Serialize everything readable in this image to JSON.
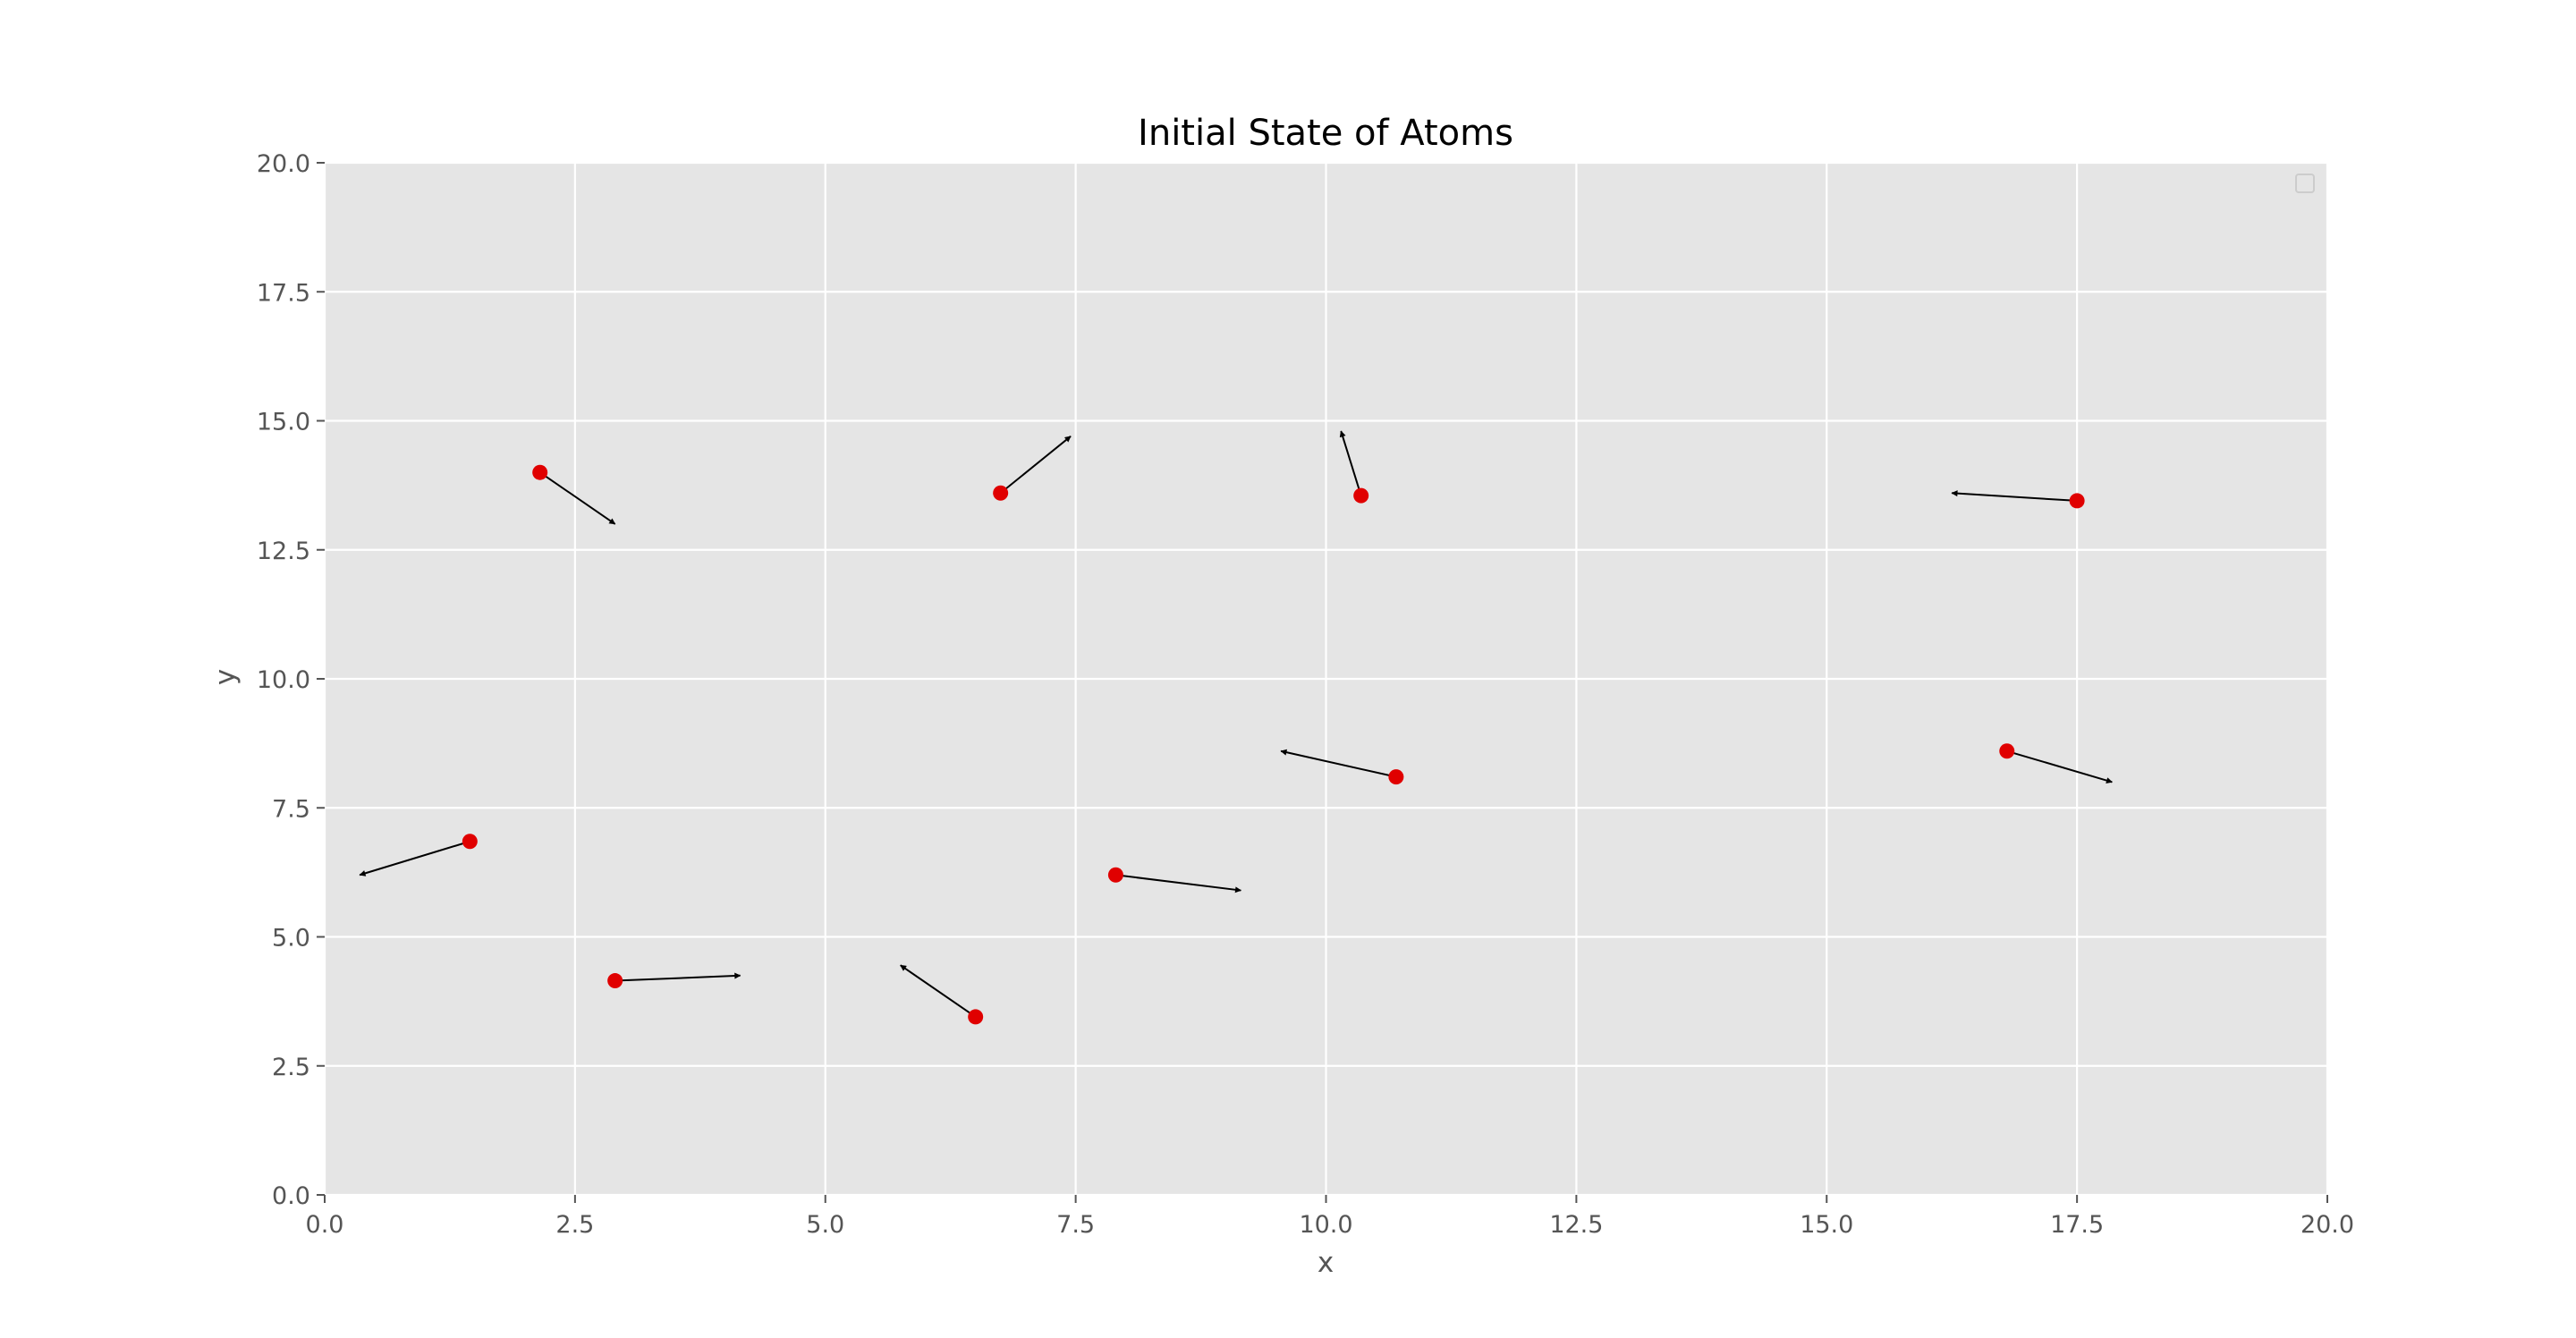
{
  "chart_data": {
    "type": "scatter",
    "title": "Initial State of Atoms",
    "xlabel": "x",
    "ylabel": "y",
    "xlim": [
      0,
      20
    ],
    "ylim": [
      0,
      20
    ],
    "grid": true,
    "legend": "top-right",
    "colors": {
      "background": "#e5e5e5",
      "grid": "#ffffff",
      "point": "#e00000",
      "arrow": "#000000",
      "tick": "#555555"
    },
    "xticks": [
      "0.0",
      "2.5",
      "5.0",
      "7.5",
      "10.0",
      "12.5",
      "15.0",
      "17.5",
      "20.0"
    ],
    "yticks": [
      "0.0",
      "2.5",
      "5.0",
      "7.5",
      "10.0",
      "12.5",
      "15.0",
      "17.5",
      "20.0"
    ],
    "points": [
      {
        "x": 2.15,
        "y": 14.0,
        "vx": 0.75,
        "vy": -1.0
      },
      {
        "x": 6.75,
        "y": 13.6,
        "vx": 0.7,
        "vy": 1.1
      },
      {
        "x": 10.35,
        "y": 13.55,
        "vx": -0.2,
        "vy": 1.25
      },
      {
        "x": 17.5,
        "y": 13.45,
        "vx": -1.25,
        "vy": 0.15
      },
      {
        "x": 1.45,
        "y": 6.85,
        "vx": -1.1,
        "vy": -0.65
      },
      {
        "x": 2.9,
        "y": 4.15,
        "vx": 1.25,
        "vy": 0.1
      },
      {
        "x": 6.5,
        "y": 3.45,
        "vx": -0.75,
        "vy": 1.0
      },
      {
        "x": 7.9,
        "y": 6.2,
        "vx": 1.25,
        "vy": -0.3
      },
      {
        "x": 10.7,
        "y": 8.1,
        "vx": -1.15,
        "vy": 0.5
      },
      {
        "x": 16.8,
        "y": 8.6,
        "vx": 1.05,
        "vy": -0.6
      }
    ]
  }
}
